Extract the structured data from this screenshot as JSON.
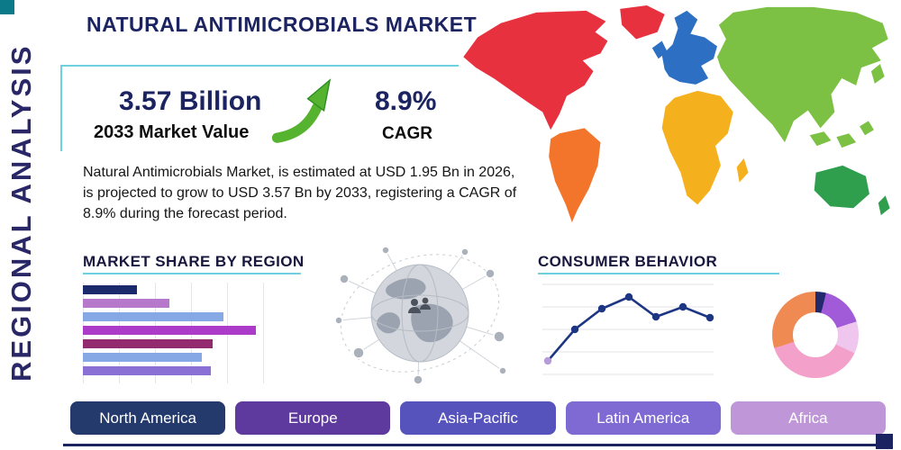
{
  "page": {
    "title": "NATURAL ANTIMICROBIALS MARKET",
    "side_label": "REGIONAL ANALYSIS"
  },
  "theme": {
    "accent_teal": "#6fd0e0",
    "navy": "#1b2461",
    "arrow_green": "#56b32f"
  },
  "icons": {
    "trend": "growth-arrow-up",
    "globe": "globe-network"
  },
  "stats": {
    "market_value": "3.57 Billion",
    "market_value_label": "2033 Market Value",
    "cagr": "8.9%",
    "cagr_label": "CAGR",
    "description": "Natural Antimicrobials Market, is estimated at USD 1.95 Bn in 2026, is projected to grow to USD 3.57 Bn by 2033, registering a CAGR of 8.9% during the forecast period."
  },
  "sections": {
    "market_share": {
      "heading": "MARKET SHARE BY REGION"
    },
    "consumer_behavior": {
      "heading": "CONSUMER BEHAVIOR"
    }
  },
  "regions": [
    {
      "label": "North America",
      "color": "#243a6d"
    },
    {
      "label": "Europe",
      "color": "#5f3a9e"
    },
    {
      "label": "Asia-Pacific",
      "color": "#5753bd"
    },
    {
      "label": "Latin America",
      "color": "#7e6ad2"
    },
    {
      "label": "Africa",
      "color": "#bf97d8"
    }
  ],
  "map_colors": {
    "north_america": "#e8313e",
    "south_america": "#f3752c",
    "europe": "#2d6fc2",
    "africa": "#f5b01e",
    "asia": "#7cc144",
    "australia": "#2f9e4d"
  },
  "chart_data": [
    {
      "type": "bar",
      "title": "MARKET SHARE BY REGION",
      "orientation": "horizontal",
      "note": "bars unlabeled in source; values are relative lengths (% of axis) estimated from pixels",
      "values": [
        25,
        40,
        65,
        80,
        60,
        55,
        59
      ],
      "colors": [
        "#1b2a6c",
        "#b678cb",
        "#86a9e6",
        "#ad3bc9",
        "#93296f",
        "#86a9e6",
        "#8a70d4"
      ],
      "grid": "vertical-light-gray"
    },
    {
      "type": "line",
      "title": "CONSUMER BEHAVIOR",
      "note": "axes unlabeled in source; values are relative heights (0-100) estimated from pixels",
      "x": [
        1,
        2,
        3,
        4,
        5,
        6,
        7
      ],
      "values": [
        15,
        50,
        73,
        86,
        64,
        75,
        63
      ],
      "color": "#1d3684",
      "first_point_color": "#b79ad8",
      "grid": "horizontal-light-gray"
    },
    {
      "type": "pie",
      "title": "Regional share donut",
      "note": "slices unlabeled in source; percentages estimated from arc angles",
      "values": [
        4,
        16,
        12,
        38,
        30
      ],
      "colors": [
        "#232a6b",
        "#a15ad8",
        "#efc6ee",
        "#f3a0ca",
        "#ef8a52"
      ],
      "donut": true
    }
  ]
}
